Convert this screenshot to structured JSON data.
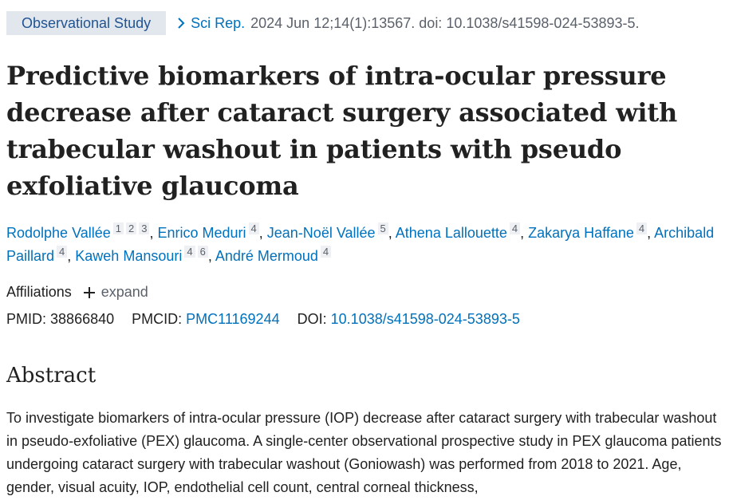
{
  "header": {
    "study_type": "Observational Study",
    "journal": "Sci Rep.",
    "citation": "2024 Jun 12;14(1):13567. doi: 10.1038/s41598-024-53893-5."
  },
  "title": "Predictive biomarkers of intra-ocular pressure decrease after cataract surgery associated with trabecular washout in patients with pseudo exfoliative glaucoma",
  "authors": [
    {
      "name": "Rodolphe Vallée",
      "affs": [
        "1",
        "2",
        "3"
      ]
    },
    {
      "name": "Enrico Meduri",
      "affs": [
        "4"
      ]
    },
    {
      "name": "Jean-Noël Vallée",
      "affs": [
        "5"
      ]
    },
    {
      "name": "Athena Lallouette",
      "affs": [
        "4"
      ]
    },
    {
      "name": "Zakarya Haffane",
      "affs": [
        "4"
      ]
    },
    {
      "name": "Archibald Paillard",
      "affs": [
        "4"
      ]
    },
    {
      "name": "Kaweh Mansouri",
      "affs": [
        "4",
        "6"
      ]
    },
    {
      "name": "André Mermoud",
      "affs": [
        "4"
      ]
    }
  ],
  "affiliations": {
    "label": "Affiliations",
    "expand": "expand"
  },
  "ids": {
    "pmid_label": "PMID:",
    "pmid": "38866840",
    "pmcid_label": "PMCID:",
    "pmcid": "PMC11169244",
    "doi_label": "DOI:",
    "doi": "10.1038/s41598-024-53893-5"
  },
  "abstract": {
    "heading": "Abstract",
    "text": "To investigate biomarkers of intra-ocular pressure (IOP) decrease after cataract surgery with trabecular washout in pseudo-exfoliative (PEX) glaucoma. A single-center observational prospective study in PEX glaucoma patients undergoing cataract surgery with trabecular washout (Goniowash) was performed from 2018 to 2021. Age, gender, visual acuity, IOP, endothelial cell count, central corneal thickness,"
  },
  "colors": {
    "link": "#0071bc",
    "badge_bg": "#e2e7ee",
    "badge_text": "#205493",
    "muted": "#5b616b"
  }
}
